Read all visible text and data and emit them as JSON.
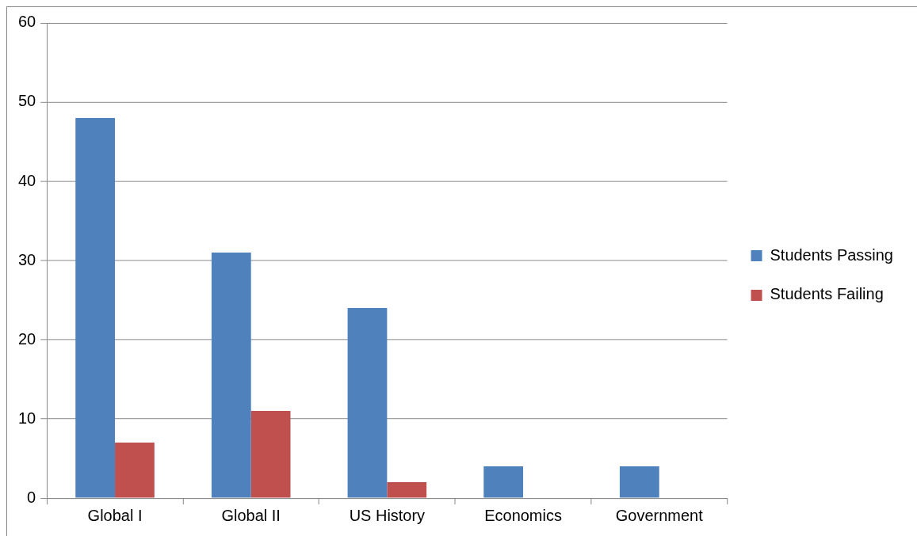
{
  "chart_data": {
    "type": "bar",
    "categories": [
      "Global I",
      "Global II",
      "US History",
      "Economics",
      "Government"
    ],
    "series": [
      {
        "name": "Students Passing",
        "color": "#4f81bd",
        "values": [
          48,
          31,
          24,
          4,
          4
        ]
      },
      {
        "name": "Students Failing",
        "color": "#c0504d",
        "values": [
          7,
          11,
          2,
          0,
          0
        ]
      }
    ],
    "ylim": [
      0,
      60
    ],
    "yticks": [
      0,
      10,
      20,
      30,
      40,
      50,
      60
    ],
    "grid": "y",
    "legend": "right"
  }
}
